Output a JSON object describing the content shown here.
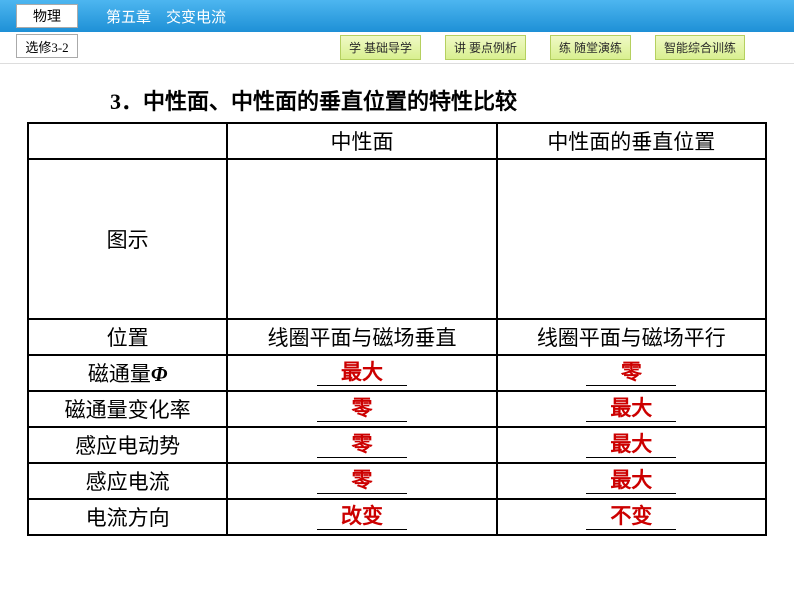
{
  "header": {
    "subject": "物理",
    "chapter": "第五章　交变电流",
    "book": "选修3-2"
  },
  "nav": {
    "btn1": "学 基础导学",
    "btn2": "讲 要点例析",
    "btn3": "练 随堂演练",
    "btn4": "智能综合训练"
  },
  "title": "3．中性面、中性面的垂直位置的特性比较",
  "table": {
    "head": {
      "c0": "",
      "c1": "中性面",
      "c2": "中性面的垂直位置"
    },
    "rows": {
      "r0": {
        "label": "图示",
        "v1": "",
        "v2": ""
      },
      "r1": {
        "label": "位置",
        "v1": "线圈平面与磁场垂直",
        "v2": "线圈平面与磁场平行"
      },
      "r2": {
        "label_pre": "磁通量",
        "label_phi": "Φ",
        "v1": "最大",
        "v2": "零"
      },
      "r3": {
        "label": "磁通量变化率",
        "v1": "零",
        "v2": "最大"
      },
      "r4": {
        "label": "感应电动势",
        "v1": "零",
        "v2": "最大"
      },
      "r5": {
        "label": "感应电流",
        "v1": "零",
        "v2": "最大"
      },
      "r6": {
        "label": "电流方向",
        "v1": "改变",
        "v2": "不变"
      }
    }
  },
  "colors": {
    "header_grad_top": "#4db6f0",
    "header_grad_bottom": "#1e90d6",
    "nav_grad_top": "#f0f9c5",
    "nav_grad_bottom": "#d9f090",
    "red": "#cc0000"
  }
}
